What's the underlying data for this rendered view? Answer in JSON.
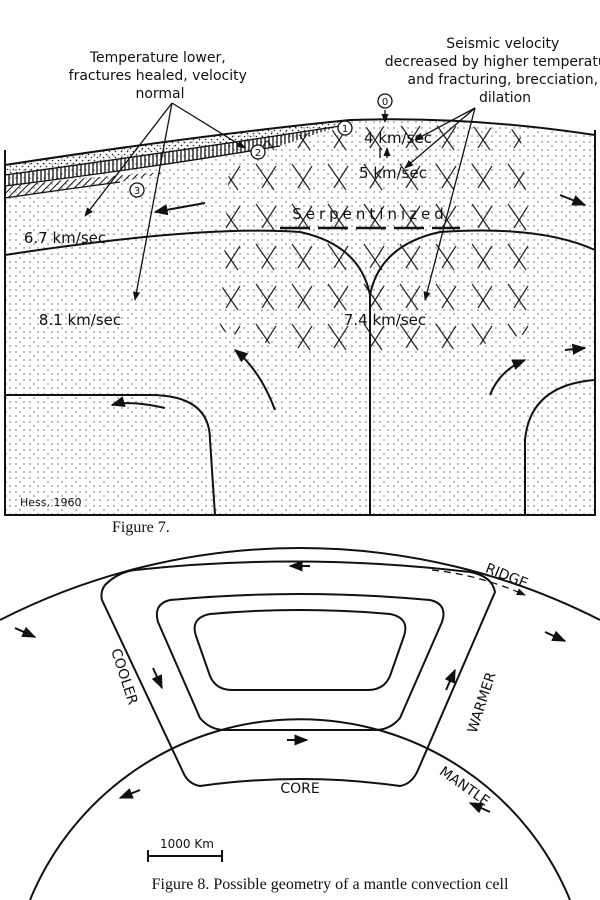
{
  "figure7": {
    "labels": {
      "temperature_lower": [
        "Temperature lower,",
        "fractures healed, velocity",
        "normal"
      ],
      "seismic_velocity": [
        "Seismic velocity",
        "decreased by higher temperature",
        "and fracturing, brecciation,",
        "dilation"
      ],
      "markers": [
        "0",
        "1",
        "2",
        "3"
      ],
      "velocity_4": "4 km/sec",
      "velocity_5": "5 km/sec",
      "serpentinized": "Serpentinized",
      "velocity_6_7": "6.7 km/sec",
      "velocity_8_1": "8.1 km/sec",
      "velocity_7_4": "7.4 km/sec",
      "credit": "Hess, 1960"
    },
    "caption": "Figure 7."
  },
  "figure8": {
    "labels": {
      "ridge": "RIDGE",
      "cooler": "COOLER",
      "warmer": "WARMER",
      "mantle": "MANTLE",
      "core": "CORE"
    },
    "scale": "1000 Km",
    "caption": "Figure 8. Possible geometry of a mantle convection cell"
  }
}
